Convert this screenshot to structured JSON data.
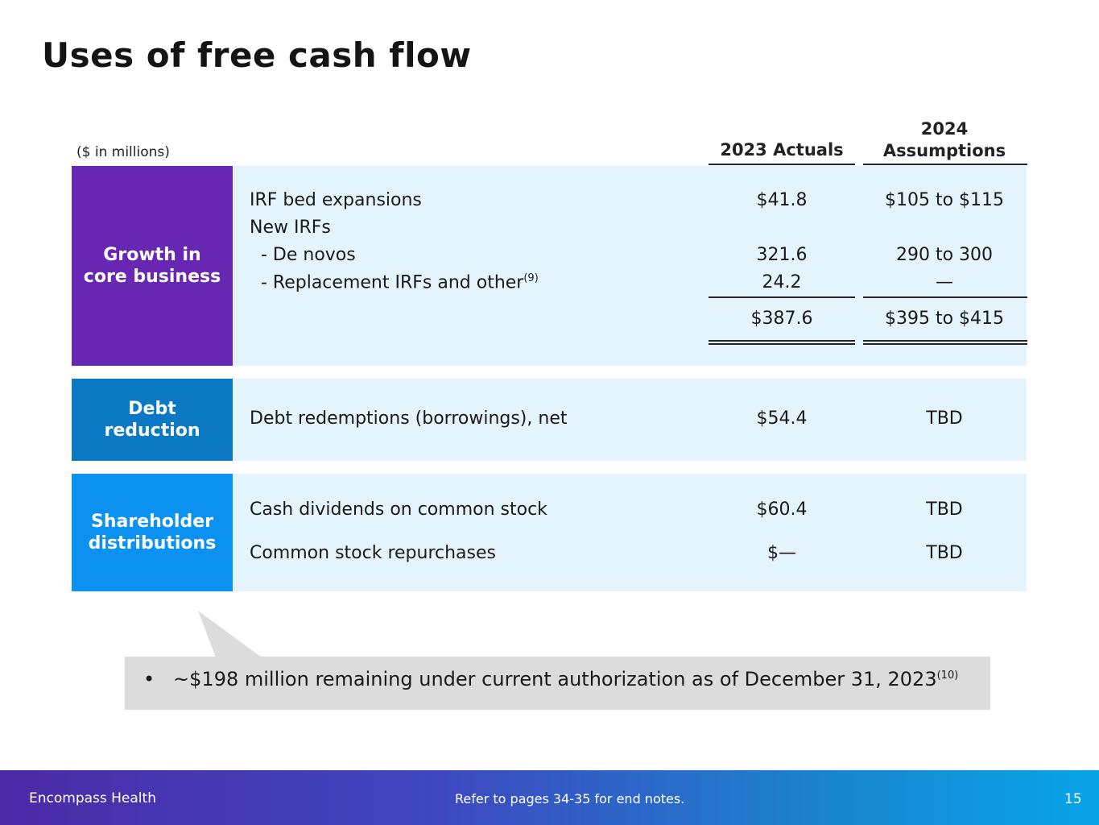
{
  "title": "Uses of free cash flow",
  "units_note": "($ in millions)",
  "columns": {
    "actuals": "2023 Actuals",
    "assumptions_line1": "2024",
    "assumptions_line2": "Assumptions"
  },
  "growth": {
    "label_line1": "Growth in",
    "label_line2": "core business",
    "color": "#6727b3",
    "rows": [
      {
        "label": "IRF bed expansions",
        "actual": "$41.8",
        "assumption": "$105 to $115"
      },
      {
        "label": "New IRFs",
        "actual": "",
        "assumption": ""
      },
      {
        "label": "  - De novos",
        "actual": "321.6",
        "assumption": "290 to 300"
      },
      {
        "label": "  - Replacement IRFs and other",
        "note": "(9)",
        "actual": "24.2",
        "assumption": "—"
      }
    ],
    "total_actual": "$387.6",
    "total_assumption": "$395 to $415"
  },
  "debt": {
    "label_line1": "Debt",
    "label_line2": "reduction",
    "color": "#0a78c2",
    "row": {
      "label": "Debt redemptions (borrowings), net",
      "actual": "$54.4",
      "assumption": "TBD"
    }
  },
  "shareholder": {
    "label_line1": "Shareholder",
    "label_line2": "distributions",
    "color": "#0b92f0",
    "rows": [
      {
        "label": "Cash dividends on common stock",
        "actual": "$60.4",
        "assumption": "TBD"
      },
      {
        "label": "Common stock repurchases",
        "actual": "$—",
        "assumption": "TBD"
      }
    ]
  },
  "callout": {
    "bullet": "•",
    "text": "~$198 million remaining under current authorization as of December 31, 2023",
    "note": "(10)"
  },
  "footer": {
    "company": "Encompass Health",
    "endnote": "Refer to pages 34-35 for end notes.",
    "page": "15"
  }
}
